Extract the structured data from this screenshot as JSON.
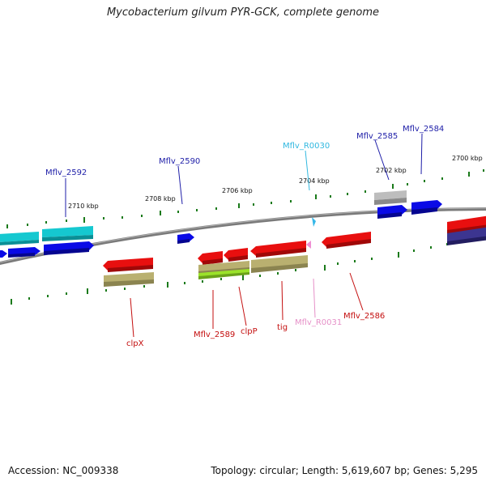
{
  "title": "Mycobacterium gilvum PYR-GCK, complete genome",
  "footer": {
    "accession": "Accession: NC_009338",
    "summary": "Topology: circular; Length: 5,619,607 bp; Genes: 5,295"
  },
  "scale_labels": [
    "2710 kbp",
    "2708 kbp",
    "2706 kbp",
    "2704 kbp",
    "2702 kbp",
    "2700 kbp"
  ],
  "gene_labels": {
    "top": [
      "Mflv_2592",
      "Mflv_2590",
      "Mflv_R0030",
      "Mflv_2585",
      "Mflv_2584"
    ],
    "bottom": [
      "clpX",
      "Mflv_2589",
      "clpP",
      "tig",
      "Mflv_R0031",
      "Mflv_2586"
    ]
  },
  "colors": {
    "backbone": "#7a7a7a",
    "ticks": "#1a7a1a",
    "blue_gene": "#0a0ae6",
    "cyan_gene": "#15c8d0",
    "red_gene": "#e80f0f",
    "khaki_gene": "#b9b070",
    "lime_gene": "#9be22a",
    "gray_gene": "#bdbdbd",
    "navy_gene": "#3c3590",
    "trna_cyan": "#35b7e8",
    "trna_pink": "#ef8fd3",
    "label_blue": "#1e1ea8",
    "label_cyan": "#30b8e0",
    "label_red": "#c40f0f",
    "label_pink": "#e690c8"
  }
}
